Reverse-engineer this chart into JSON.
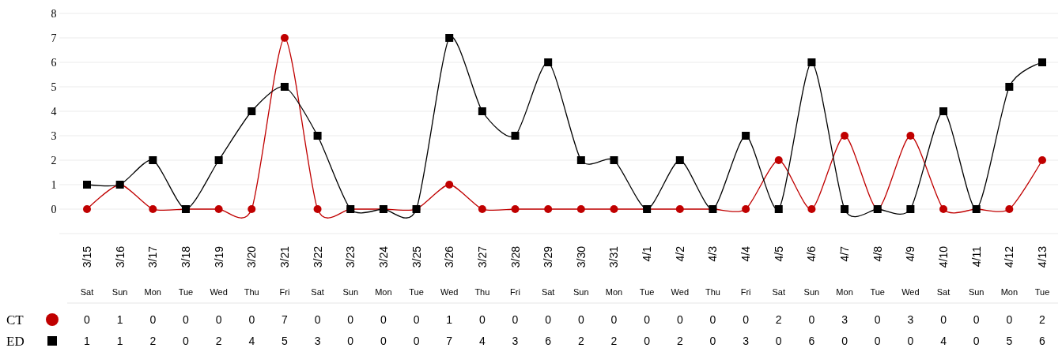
{
  "chart_data": {
    "type": "line",
    "categories": [
      "3/15\nSat",
      "3/16\nSun",
      "3/17\nMon",
      "3/18\nTue",
      "3/19\nWed",
      "3/20\nThu",
      "3/21\nFri",
      "3/22\nSat",
      "3/23\nSun",
      "3/24\nMon",
      "3/25\nTue",
      "3/26\nWed",
      "3/27\nThu",
      "3/28\nFri",
      "3/29\nSat",
      "3/30\nSun",
      "3/31\nMon",
      "4/1\nTue",
      "4/2\nWed",
      "4/3\nThu",
      "4/4\nFri",
      "4/5\nSat",
      "4/6\nSun",
      "4/7\nMon",
      "4/8\nTue",
      "4/9\nWed",
      "4/10\nSat",
      "4/11\nSun",
      "4/12\nMon",
      "4/13\nTue"
    ],
    "series": [
      {
        "name": "CT",
        "color": "#c00000",
        "marker": "circle",
        "values": [
          0,
          1,
          0,
          0,
          0,
          0,
          7,
          0,
          0,
          0,
          0,
          1,
          0,
          0,
          0,
          0,
          0,
          0,
          0,
          0,
          0,
          2,
          0,
          3,
          0,
          3,
          0,
          0,
          0,
          2
        ]
      },
      {
        "name": "ED",
        "color": "#000000",
        "marker": "square",
        "values": [
          1,
          1,
          2,
          0,
          2,
          4,
          5,
          3,
          0,
          0,
          0,
          7,
          4,
          3,
          6,
          2,
          2,
          0,
          2,
          0,
          3,
          0,
          6,
          0,
          0,
          0,
          4,
          0,
          5,
          6
        ]
      }
    ],
    "ylim": [
      -1,
      8
    ],
    "yticks": [
      {
        "value": -1,
        "label": null
      },
      0,
      1,
      2,
      3,
      4,
      5,
      6,
      7,
      8
    ],
    "grid": "y",
    "legend": "bottom",
    "data_labels": true
  }
}
